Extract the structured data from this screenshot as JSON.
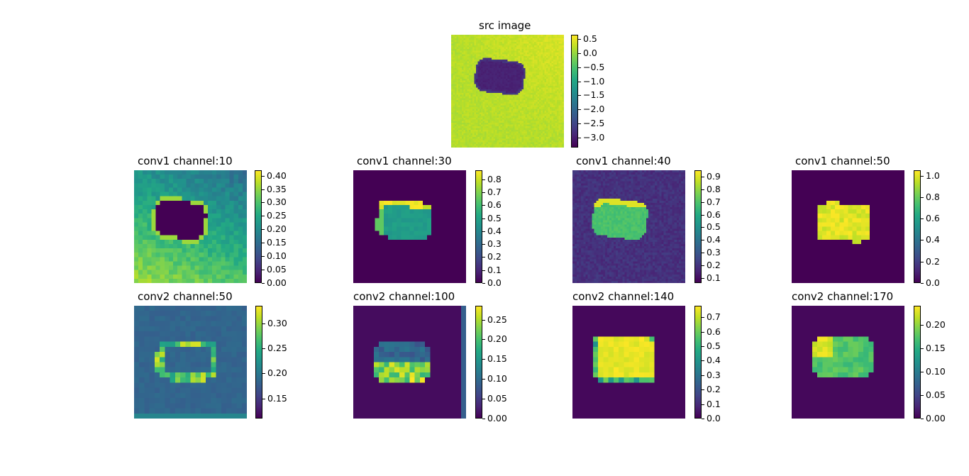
{
  "figure": {
    "colormap": "viridis"
  },
  "chart_data": [
    {
      "type": "heatmap",
      "title": "src image",
      "colorbar_ticks": [
        "0.5",
        "0.0",
        "−0.5",
        "−1.0",
        "−1.5",
        "−2.0",
        "−2.5",
        "−3.0"
      ],
      "colorbar_tick_values": [
        0.5,
        0.0,
        -0.5,
        -1.0,
        -1.5,
        -2.0,
        -2.5,
        -3.0
      ],
      "vmin": -3.35,
      "vmax": 0.65
    },
    {
      "type": "heatmap",
      "title": "conv1 channel:10",
      "colorbar_ticks": [
        "0.40",
        "0.35",
        "0.30",
        "0.25",
        "0.20",
        "0.15",
        "0.10",
        "0.05",
        "0.00"
      ],
      "colorbar_tick_values": [
        0.4,
        0.35,
        0.3,
        0.25,
        0.2,
        0.15,
        0.1,
        0.05,
        0.0
      ],
      "vmin": 0.0,
      "vmax": 0.42
    },
    {
      "type": "heatmap",
      "title": "conv1 channel:30",
      "colorbar_ticks": [
        "0.8",
        "0.7",
        "0.6",
        "0.5",
        "0.4",
        "0.3",
        "0.2",
        "0.1",
        "0.0"
      ],
      "colorbar_tick_values": [
        0.8,
        0.7,
        0.6,
        0.5,
        0.4,
        0.3,
        0.2,
        0.1,
        0.0
      ],
      "vmin": 0.0,
      "vmax": 0.87
    },
    {
      "type": "heatmap",
      "title": "conv1 channel:40",
      "colorbar_ticks": [
        "0.9",
        "0.8",
        "0.7",
        "0.6",
        "0.5",
        "0.4",
        "0.3",
        "0.2",
        "0.1"
      ],
      "colorbar_tick_values": [
        0.9,
        0.8,
        0.7,
        0.6,
        0.5,
        0.4,
        0.3,
        0.2,
        0.1
      ],
      "vmin": 0.06,
      "vmax": 0.95
    },
    {
      "type": "heatmap",
      "title": "conv1 channel:50",
      "colorbar_ticks": [
        "1.0",
        "0.8",
        "0.6",
        "0.4",
        "0.2",
        "0.0"
      ],
      "colorbar_tick_values": [
        1.0,
        0.8,
        0.6,
        0.4,
        0.2,
        0.0
      ],
      "vmin": 0.0,
      "vmax": 1.05
    },
    {
      "type": "heatmap",
      "title": "conv2 channel:50",
      "colorbar_ticks": [
        "0.30",
        "0.25",
        "0.20",
        "0.15"
      ],
      "colorbar_tick_values": [
        0.3,
        0.25,
        0.2,
        0.15
      ],
      "vmin": 0.11,
      "vmax": 0.335
    },
    {
      "type": "heatmap",
      "title": "conv2 channel:100",
      "colorbar_ticks": [
        "0.25",
        "0.20",
        "0.15",
        "0.10",
        "0.05",
        "0.00"
      ],
      "colorbar_tick_values": [
        0.25,
        0.2,
        0.15,
        0.1,
        0.05,
        0.0
      ],
      "vmin": 0.0,
      "vmax": 0.285
    },
    {
      "type": "heatmap",
      "title": "conv2 channel:140",
      "colorbar_ticks": [
        "0.7",
        "0.6",
        "0.5",
        "0.4",
        "0.3",
        "0.2",
        "0.1",
        "0.0"
      ],
      "colorbar_tick_values": [
        0.7,
        0.6,
        0.5,
        0.4,
        0.3,
        0.2,
        0.1,
        0.0
      ],
      "vmin": 0.0,
      "vmax": 0.78
    },
    {
      "type": "heatmap",
      "title": "conv2 channel:170",
      "colorbar_ticks": [
        "0.20",
        "0.15",
        "0.10",
        "0.05",
        "0.00"
      ],
      "colorbar_tick_values": [
        0.2,
        0.15,
        0.1,
        0.05,
        0.0
      ],
      "vmin": 0.0,
      "vmax": 0.24
    }
  ]
}
